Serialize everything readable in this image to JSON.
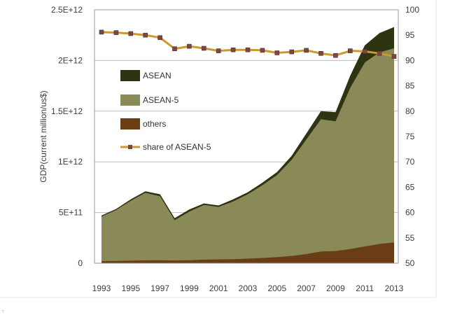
{
  "chart_data": {
    "type": "area",
    "title": "",
    "ylabel": "GDP(current million/us$)",
    "y2label": "",
    "x": [
      1993,
      1994,
      1995,
      1996,
      1997,
      1998,
      1999,
      2000,
      2001,
      2002,
      2003,
      2004,
      2005,
      2006,
      2007,
      2008,
      2009,
      2010,
      2011,
      2012,
      2013
    ],
    "ylim": [
      0,
      2500000000000.0
    ],
    "y2lim": [
      50,
      100
    ],
    "x_tick_labels": [
      "1993",
      "1995",
      "1997",
      "1999",
      "2001",
      "2003",
      "2005",
      "2007",
      "2009",
      "2011",
      "2013"
    ],
    "y_tick_labels": [
      "0",
      "5E+11",
      "1E+12",
      "1.5E+12",
      "2E+12",
      "2.5E+12"
    ],
    "y2_tick_labels": [
      "50",
      "55",
      "60",
      "65",
      "70",
      "75",
      "80",
      "85",
      "90",
      "95",
      "100"
    ],
    "series": [
      {
        "name": "ASEAN",
        "kind": "area-total",
        "color": "#2e3312",
        "values": [
          470000000000.0,
          535000000000.0,
          630000000000.0,
          710000000000.0,
          680000000000.0,
          445000000000.0,
          530000000000.0,
          590000000000.0,
          570000000000.0,
          630000000000.0,
          700000000000.0,
          795000000000.0,
          900000000000.0,
          1060000000000.0,
          1280000000000.0,
          1500000000000.0,
          1490000000000.0,
          1850000000000.0,
          2150000000000.0,
          2270000000000.0,
          2330000000000.0
        ]
      },
      {
        "name": "ASEAN-5",
        "kind": "area-total",
        "color": "#8a8a58",
        "values": [
          460000000000.0,
          525000000000.0,
          615000000000.0,
          695000000000.0,
          660000000000.0,
          425000000000.0,
          510000000000.0,
          575000000000.0,
          555000000000.0,
          610000000000.0,
          680000000000.0,
          770000000000.0,
          870000000000.0,
          1020000000000.0,
          1220000000000.0,
          1420000000000.0,
          1400000000000.0,
          1730000000000.0,
          1980000000000.0,
          2080000000000.0,
          2120000000000.0
        ]
      },
      {
        "name": "others",
        "kind": "area",
        "color": "#6b3d14",
        "values": [
          20000000000.0,
          22000000000.0,
          25000000000.0,
          28000000000.0,
          30000000000.0,
          27000000000.0,
          30000000000.0,
          35000000000.0,
          37000000000.0,
          40000000000.0,
          45000000000.0,
          52000000000.0,
          60000000000.0,
          72000000000.0,
          90000000000.0,
          115000000000.0,
          120000000000.0,
          140000000000.0,
          165000000000.0,
          190000000000.0,
          205000000000.0
        ]
      },
      {
        "name": "share of ASEAN-5",
        "kind": "line-right-axis",
        "color": "#c99a2e",
        "marker_color": "#7a4646",
        "values": [
          95.6,
          95.5,
          95.3,
          95.0,
          94.5,
          92.3,
          92.8,
          92.4,
          91.9,
          92.1,
          92.1,
          92.0,
          91.5,
          91.7,
          92.0,
          91.4,
          91.0,
          91.9,
          91.8,
          91.4,
          90.8
        ]
      }
    ],
    "legend": {
      "placement": "left-inside",
      "entries": [
        "ASEAN",
        "ASEAN-5",
        "others",
        "share of ASEAN-5"
      ]
    },
    "grid": {
      "horizontal": true,
      "vertical": false
    },
    "footnote": "┐"
  }
}
